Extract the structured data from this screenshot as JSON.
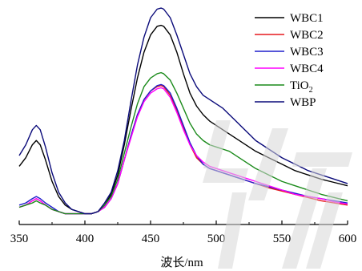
{
  "chart_data": {
    "type": "line",
    "title": "",
    "xlabel": "波长/nm",
    "ylabel": "",
    "xlim": [
      350,
      600
    ],
    "xticks": [
      350,
      400,
      450,
      500,
      550,
      600
    ],
    "grid": false,
    "legend_position": "top-right",
    "series": [
      {
        "name": "WBC1",
        "color": "#000000",
        "x": [
          350,
          355,
          360,
          363,
          366,
          370,
          375,
          380,
          385,
          390,
          395,
          400,
          405,
          410,
          415,
          420,
          425,
          430,
          435,
          440,
          445,
          450,
          455,
          458,
          460,
          465,
          470,
          475,
          480,
          485,
          490,
          495,
          500,
          505,
          510,
          515,
          520,
          525,
          530,
          540,
          550,
          560,
          570,
          580,
          590,
          600
        ],
        "y": [
          0.27,
          0.31,
          0.37,
          0.39,
          0.37,
          0.3,
          0.2,
          0.13,
          0.09,
          0.07,
          0.06,
          0.05,
          0.05,
          0.06,
          0.09,
          0.14,
          0.23,
          0.37,
          0.53,
          0.68,
          0.8,
          0.88,
          0.92,
          0.925,
          0.92,
          0.88,
          0.8,
          0.7,
          0.61,
          0.55,
          0.51,
          0.48,
          0.46,
          0.44,
          0.42,
          0.4,
          0.38,
          0.36,
          0.34,
          0.31,
          0.28,
          0.25,
          0.23,
          0.21,
          0.195,
          0.18
        ]
      },
      {
        "name": "WBC2",
        "color": "#e6191e",
        "x": [
          350,
          355,
          360,
          363,
          366,
          370,
          375,
          380,
          385,
          390,
          395,
          400,
          405,
          410,
          415,
          420,
          425,
          430,
          435,
          440,
          445,
          450,
          455,
          458,
          460,
          465,
          470,
          475,
          480,
          485,
          490,
          495,
          500,
          505,
          510,
          515,
          520,
          525,
          530,
          540,
          550,
          560,
          570,
          580,
          590,
          600
        ],
        "y": [
          0.08,
          0.09,
          0.11,
          0.12,
          0.11,
          0.09,
          0.07,
          0.06,
          0.05,
          0.05,
          0.05,
          0.05,
          0.05,
          0.06,
          0.08,
          0.12,
          0.19,
          0.3,
          0.41,
          0.51,
          0.58,
          0.62,
          0.64,
          0.645,
          0.64,
          0.6,
          0.53,
          0.45,
          0.37,
          0.31,
          0.28,
          0.26,
          0.25,
          0.24,
          0.23,
          0.22,
          0.21,
          0.2,
          0.19,
          0.17,
          0.155,
          0.14,
          0.125,
          0.11,
          0.1,
          0.09
        ]
      },
      {
        "name": "WBC3",
        "color": "#1e1ecc",
        "x": [
          350,
          355,
          360,
          363,
          366,
          370,
          375,
          380,
          385,
          390,
          395,
          400,
          405,
          410,
          415,
          420,
          425,
          430,
          435,
          440,
          445,
          450,
          455,
          458,
          460,
          465,
          470,
          475,
          480,
          485,
          490,
          495,
          500,
          505,
          510,
          515,
          520,
          525,
          530,
          540,
          550,
          560,
          570,
          580,
          590,
          600
        ],
        "y": [
          0.09,
          0.1,
          0.12,
          0.13,
          0.12,
          0.1,
          0.08,
          0.06,
          0.05,
          0.05,
          0.05,
          0.05,
          0.05,
          0.06,
          0.08,
          0.12,
          0.19,
          0.3,
          0.41,
          0.51,
          0.58,
          0.62,
          0.645,
          0.65,
          0.645,
          0.61,
          0.54,
          0.46,
          0.38,
          0.32,
          0.28,
          0.26,
          0.25,
          0.24,
          0.23,
          0.22,
          0.21,
          0.2,
          0.19,
          0.175,
          0.16,
          0.145,
          0.13,
          0.12,
          0.11,
          0.1
        ]
      },
      {
        "name": "WBC4",
        "color": "#ff00ff",
        "x": [
          350,
          355,
          360,
          363,
          366,
          370,
          375,
          380,
          385,
          390,
          395,
          400,
          405,
          410,
          415,
          420,
          425,
          430,
          435,
          440,
          445,
          450,
          455,
          458,
          460,
          465,
          470,
          475,
          480,
          485,
          490,
          495,
          500,
          505,
          510,
          515,
          520,
          525,
          530,
          540,
          550,
          560,
          570,
          580,
          590,
          600
        ],
        "y": [
          0.08,
          0.09,
          0.11,
          0.12,
          0.11,
          0.09,
          0.07,
          0.06,
          0.05,
          0.05,
          0.05,
          0.05,
          0.05,
          0.06,
          0.08,
          0.12,
          0.19,
          0.3,
          0.4,
          0.5,
          0.57,
          0.61,
          0.63,
          0.635,
          0.63,
          0.59,
          0.52,
          0.44,
          0.37,
          0.32,
          0.29,
          0.27,
          0.26,
          0.25,
          0.24,
          0.23,
          0.22,
          0.21,
          0.2,
          0.18,
          0.16,
          0.14,
          0.13,
          0.12,
          0.105,
          0.095
        ]
      },
      {
        "name": "TiO₂",
        "color": "#1a8a1a",
        "x": [
          350,
          355,
          360,
          363,
          366,
          370,
          375,
          380,
          385,
          390,
          395,
          400,
          405,
          410,
          415,
          420,
          425,
          430,
          435,
          440,
          445,
          450,
          455,
          458,
          460,
          465,
          470,
          475,
          480,
          485,
          490,
          495,
          500,
          505,
          510,
          515,
          520,
          525,
          530,
          540,
          550,
          560,
          570,
          580,
          590,
          600
        ],
        "y": [
          0.08,
          0.09,
          0.1,
          0.11,
          0.1,
          0.09,
          0.07,
          0.06,
          0.05,
          0.05,
          0.05,
          0.05,
          0.05,
          0.06,
          0.09,
          0.13,
          0.21,
          0.33,
          0.45,
          0.56,
          0.64,
          0.68,
          0.7,
          0.705,
          0.7,
          0.67,
          0.61,
          0.54,
          0.47,
          0.42,
          0.39,
          0.37,
          0.36,
          0.35,
          0.34,
          0.32,
          0.3,
          0.28,
          0.26,
          0.23,
          0.2,
          0.18,
          0.16,
          0.14,
          0.125,
          0.11
        ]
      },
      {
        "name": "WBP",
        "color": "#0a0a7a",
        "x": [
          350,
          355,
          360,
          363,
          366,
          370,
          375,
          380,
          385,
          390,
          395,
          400,
          405,
          410,
          415,
          420,
          425,
          430,
          435,
          440,
          445,
          450,
          455,
          458,
          460,
          465,
          470,
          475,
          480,
          485,
          490,
          495,
          500,
          505,
          510,
          515,
          520,
          525,
          530,
          540,
          550,
          560,
          570,
          580,
          590,
          600
        ],
        "y": [
          0.32,
          0.37,
          0.44,
          0.46,
          0.44,
          0.36,
          0.24,
          0.15,
          0.1,
          0.07,
          0.06,
          0.05,
          0.05,
          0.06,
          0.1,
          0.15,
          0.25,
          0.39,
          0.57,
          0.74,
          0.87,
          0.96,
          1.0,
          1.005,
          1.0,
          0.96,
          0.88,
          0.79,
          0.7,
          0.64,
          0.6,
          0.58,
          0.56,
          0.54,
          0.51,
          0.48,
          0.45,
          0.42,
          0.39,
          0.35,
          0.31,
          0.28,
          0.25,
          0.23,
          0.21,
          0.19
        ]
      }
    ]
  }
}
